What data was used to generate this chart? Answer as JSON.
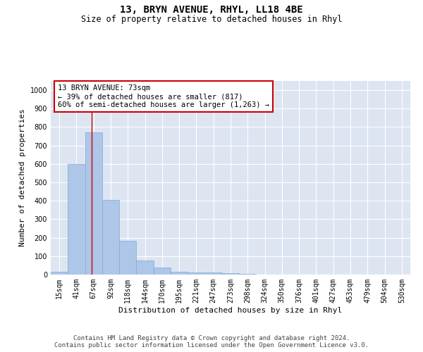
{
  "title1": "13, BRYN AVENUE, RHYL, LL18 4BE",
  "title2": "Size of property relative to detached houses in Rhyl",
  "xlabel": "Distribution of detached houses by size in Rhyl",
  "ylabel": "Number of detached properties",
  "bar_labels": [
    "15sqm",
    "41sqm",
    "67sqm",
    "92sqm",
    "118sqm",
    "144sqm",
    "170sqm",
    "195sqm",
    "221sqm",
    "247sqm",
    "273sqm",
    "298sqm",
    "324sqm",
    "350sqm",
    "376sqm",
    "401sqm",
    "427sqm",
    "453sqm",
    "479sqm",
    "504sqm",
    "530sqm"
  ],
  "bar_values": [
    15,
    600,
    770,
    405,
    185,
    78,
    37,
    17,
    12,
    10,
    8,
    5,
    0,
    0,
    0,
    0,
    0,
    0,
    0,
    0,
    0
  ],
  "bar_color": "#aec6e8",
  "bar_edge_color": "#7aafd4",
  "vline_x": 1.9,
  "vline_color": "#cc0000",
  "annotation_text": "13 BRYN AVENUE: 73sqm\n← 39% of detached houses are smaller (817)\n60% of semi-detached houses are larger (1,263) →",
  "annotation_box_color": "#cc0000",
  "ylim": [
    0,
    1050
  ],
  "yticks": [
    0,
    100,
    200,
    300,
    400,
    500,
    600,
    700,
    800,
    900,
    1000
  ],
  "background_color": "#dde5f2",
  "footer": "Contains HM Land Registry data © Crown copyright and database right 2024.\nContains public sector information licensed under the Open Government Licence v3.0.",
  "title1_fontsize": 10,
  "title2_fontsize": 8.5,
  "xlabel_fontsize": 8,
  "ylabel_fontsize": 8,
  "annotation_fontsize": 7.5,
  "tick_fontsize": 7,
  "footer_fontsize": 6.5
}
